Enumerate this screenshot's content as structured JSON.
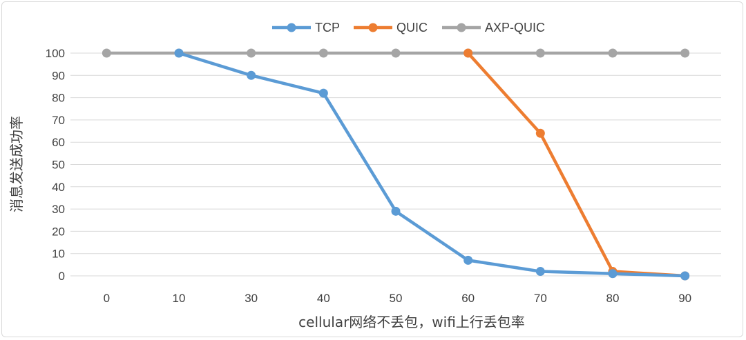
{
  "chart_data": {
    "type": "line",
    "title": "",
    "xlabel": "cellular网络不丢包，wifi上行丢包率",
    "ylabel": "消息发送成功率",
    "x": [
      "0",
      "10",
      "30",
      "40",
      "50",
      "60",
      "70",
      "80",
      "90"
    ],
    "ylim": [
      0,
      100
    ],
    "yticks": [
      0,
      10,
      20,
      30,
      40,
      50,
      60,
      70,
      80,
      90,
      100
    ],
    "grid": true,
    "legend_position": "top",
    "series": [
      {
        "name": "TCP",
        "color": "#5b9bd5",
        "values": [
          null,
          100,
          90,
          82,
          29,
          7,
          2,
          1,
          0
        ]
      },
      {
        "name": "QUIC",
        "color": "#ed7d31",
        "values": [
          null,
          null,
          null,
          null,
          null,
          100,
          64,
          2,
          0
        ]
      },
      {
        "name": "AXP-QUIC",
        "color": "#a5a5a5",
        "values": [
          100,
          100,
          100,
          100,
          100,
          100,
          100,
          100,
          100
        ]
      }
    ]
  }
}
